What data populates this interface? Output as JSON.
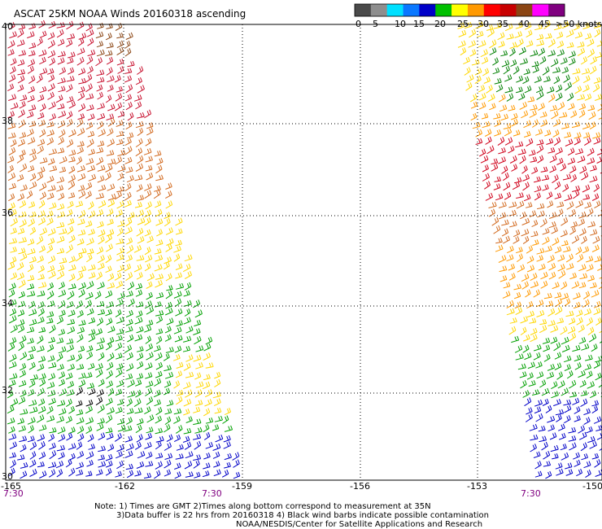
{
  "title": "ASCAT 25KM NOAA Winds 20160318 ascending",
  "legend": {
    "tick_labels": [
      "0",
      "5",
      "10",
      "15",
      "20",
      "25",
      "30",
      "35",
      "40",
      "45",
      ">50 knots"
    ],
    "colors": [
      "#4a4a4a",
      "#8e8e8e",
      "#00e0ff",
      "#0a78ff",
      "#0000c8",
      "#00c000",
      "#ffff00",
      "#ff9900",
      "#ff0000",
      "#c80000",
      "#8b4513",
      "#ff00ff",
      "#800080"
    ]
  },
  "lat_labels": [
    "40",
    "38",
    "36",
    "34",
    "32",
    "30"
  ],
  "lon_labels": [
    "-165",
    "-162",
    "-159",
    "-156",
    "-153",
    "-150"
  ],
  "time_labels": [
    "7:30",
    "7:30",
    "7:30"
  ],
  "notes": [
    "Note: 1) Times are GMT 2)Times along bottom correspond to measurement at 35N",
    "3)Data buffer is 22 hrs from 20160318 4) Black wind barbs indicate possible contamination",
    "NOAA/NESDIS/Center for Satellite Applications and Research"
  ],
  "swath_colors": {
    "band_40_38": "#c8102e",
    "band_38_36": "#d2691e",
    "band_36_34": "#ffd700",
    "band_34_32": "#00a000",
    "band_32_30": "#0000c8",
    "right_top": "#ffd700",
    "right_green": "#008000",
    "right_red": "#d0001a",
    "right_brown": "#d2691e",
    "right_orange": "#ff9900",
    "right_yellow": "#ffd700",
    "right_green2": "#00a000",
    "right_blue": "#0000c8",
    "contamination": "#000000"
  }
}
